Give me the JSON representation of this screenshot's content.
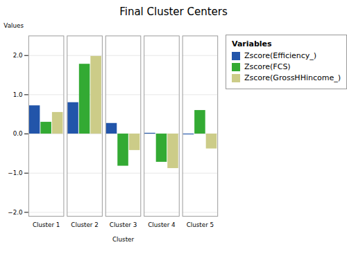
{
  "chart_data": {
    "type": "bar",
    "title": "Final Cluster Centers",
    "xlabel": "Cluster",
    "ylabel": "Values",
    "legend_title": "Variables",
    "categories": [
      "Cluster 1",
      "Cluster 2",
      "Cluster 3",
      "Cluster 4",
      "Cluster 5"
    ],
    "series": [
      {
        "name": "Zscore(Efficiency_)",
        "color": "#2255aa",
        "values": [
          0.72,
          0.8,
          0.27,
          0.02,
          -0.02
        ]
      },
      {
        "name": "Zscore(FCS)",
        "color": "#33aa33",
        "values": [
          0.3,
          1.78,
          -0.82,
          -0.72,
          0.6
        ]
      },
      {
        "name": "Zscore(GrossHHincome_)",
        "color": "#cccc88",
        "values": [
          0.55,
          1.98,
          -0.42,
          -0.88,
          -0.38
        ]
      }
    ],
    "ylim": [
      -2.1,
      2.5
    ],
    "yticks": [
      -2,
      -1,
      0,
      1,
      2
    ],
    "grid": true,
    "legend": "right"
  }
}
